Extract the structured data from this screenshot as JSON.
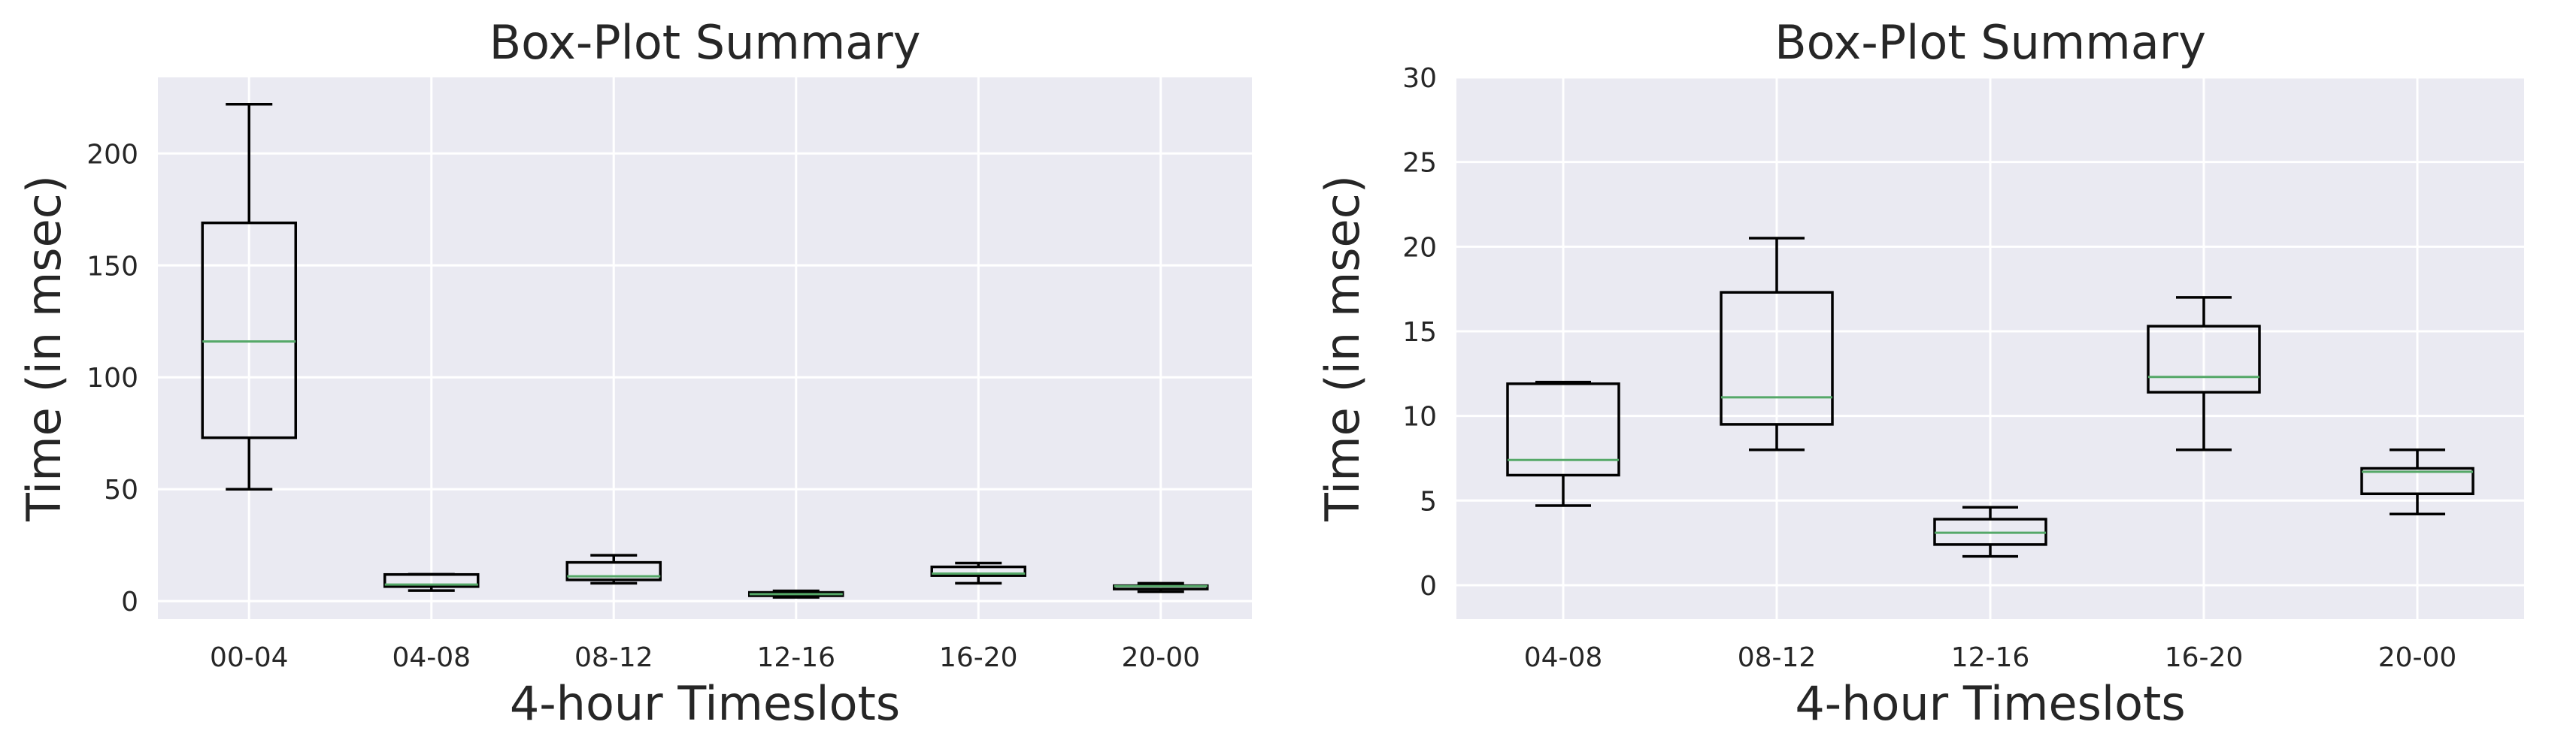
{
  "colors": {
    "plot_background": "#eaeaf2",
    "grid": "#ffffff",
    "box_edge": "#000000",
    "median": "#55a868",
    "text": "#262626"
  },
  "chart_data": [
    {
      "type": "box",
      "title": "Box-Plot Summary",
      "xlabel": "4-hour Timeslots",
      "ylabel": "Time (in msec)",
      "ylim": [
        -8,
        234
      ],
      "yticks": [
        0,
        50,
        100,
        150,
        200
      ],
      "grid": true,
      "categories": [
        "00-04",
        "04-08",
        "08-12",
        "12-16",
        "16-20",
        "20-00"
      ],
      "boxes": [
        {
          "whislo": 50,
          "q1": 73,
          "med": 116,
          "q3": 169,
          "whishi": 222
        },
        {
          "whislo": 4.7,
          "q1": 6.5,
          "med": 7.4,
          "q3": 11.9,
          "whishi": 12
        },
        {
          "whislo": 8,
          "q1": 9.5,
          "med": 11.1,
          "q3": 17.3,
          "whishi": 20.5
        },
        {
          "whislo": 1.7,
          "q1": 2.4,
          "med": 3.1,
          "q3": 3.9,
          "whishi": 4.6
        },
        {
          "whislo": 8,
          "q1": 11.4,
          "med": 12.3,
          "q3": 15.3,
          "whishi": 17
        },
        {
          "whislo": 4.2,
          "q1": 5.4,
          "med": 6.7,
          "q3": 6.9,
          "whishi": 8
        }
      ]
    },
    {
      "type": "box",
      "title": "Box-Plot Summary",
      "xlabel": "4-hour Timeslots",
      "ylabel": "Time (in msec)",
      "ylim": [
        -2,
        30
      ],
      "yticks": [
        0,
        5,
        10,
        15,
        20,
        25,
        30
      ],
      "grid": true,
      "categories": [
        "04-08",
        "08-12",
        "12-16",
        "16-20",
        "20-00"
      ],
      "boxes": [
        {
          "whislo": 4.7,
          "q1": 6.5,
          "med": 7.4,
          "q3": 11.9,
          "whishi": 12
        },
        {
          "whislo": 8,
          "q1": 9.5,
          "med": 11.1,
          "q3": 17.3,
          "whishi": 20.5
        },
        {
          "whislo": 1.7,
          "q1": 2.4,
          "med": 3.1,
          "q3": 3.9,
          "whishi": 4.6
        },
        {
          "whislo": 8,
          "q1": 11.4,
          "med": 12.3,
          "q3": 15.3,
          "whishi": 17
        },
        {
          "whislo": 4.2,
          "q1": 5.4,
          "med": 6.7,
          "q3": 6.9,
          "whishi": 8
        }
      ]
    }
  ]
}
